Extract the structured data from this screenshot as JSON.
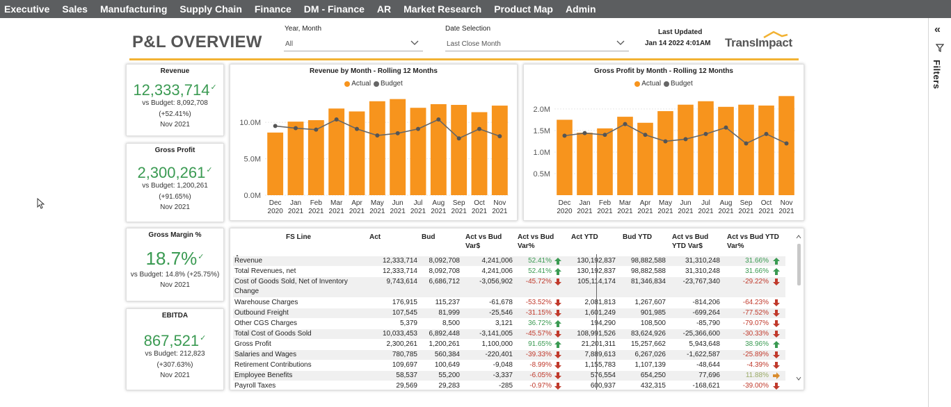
{
  "nav": {
    "items": [
      {
        "label": "Executive"
      },
      {
        "label": "Sales"
      },
      {
        "label": "Manufacturing"
      },
      {
        "label": "Supply Chain"
      },
      {
        "label": "Finance"
      },
      {
        "label": "DM - Finance"
      },
      {
        "label": "AR"
      },
      {
        "label": "Market Research"
      },
      {
        "label": "Product Map"
      },
      {
        "label": "Admin"
      }
    ]
  },
  "header": {
    "title": "P&L OVERVIEW",
    "year_month_label": "Year, Month",
    "year_month_value": "All",
    "date_selection_label": "Date Selection",
    "date_selection_value": "Last Close Month",
    "last_updated_label": "Last Updated",
    "last_updated_value": "Jan 14 2022 4:01AM",
    "logo_text": "TransImpact"
  },
  "right_pane": {
    "collapse_glyph": "«",
    "filters_label": "Filters"
  },
  "kpis": [
    {
      "title": "Revenue",
      "value": "12,333,714",
      "budget": "vs Budget: 8,092,708",
      "variance": "(+52.41%)",
      "period": "Nov 2021"
    },
    {
      "title": "Gross Profit",
      "value": "2,300,261",
      "budget": "vs Budget: 1,200,261",
      "variance": "(+91.65%)",
      "period": "Nov 2021"
    },
    {
      "title": "Gross Margin %",
      "value": "18.7%",
      "budget": "vs Budget: 14.8% (+25.75%)",
      "variance": "",
      "period": "Nov 2021"
    },
    {
      "title": "EBITDA",
      "value": "867,521",
      "budget": "vs Budget: 212,823",
      "variance": "(+307.63%)",
      "period": "Nov 2021"
    }
  ],
  "colors": {
    "actual": "#f7941d",
    "budget": "#666666",
    "positive": "#3a9a52",
    "negative": "#c0392b",
    "accent": "#f2b233"
  },
  "chart_data": [
    {
      "type": "bar",
      "title": "Revenue by Month - Rolling 12 Months",
      "legend": [
        "Actual",
        "Budget"
      ],
      "legend_position": "top-center",
      "categories": [
        [
          "Dec",
          "2020"
        ],
        [
          "Jan",
          "2021"
        ],
        [
          "Feb",
          "2021"
        ],
        [
          "Mar",
          "2021"
        ],
        [
          "Apr",
          "2021"
        ],
        [
          "May",
          "2021"
        ],
        [
          "Jun",
          "2021"
        ],
        [
          "Jul",
          "2021"
        ],
        [
          "Aug",
          "2021"
        ],
        [
          "Sep",
          "2021"
        ],
        [
          "Oct",
          "2021"
        ],
        [
          "Nov",
          "2021"
        ]
      ],
      "yticks": [
        {
          "v": 0,
          "label": "0.0M"
        },
        {
          "v": 5,
          "label": "5.0M"
        },
        {
          "v": 10,
          "label": "10.0M"
        }
      ],
      "ylim": [
        0,
        14.5
      ],
      "series": [
        {
          "name": "Actual",
          "kind": "bar",
          "values": [
            8.6,
            10.1,
            10.3,
            11.9,
            11.5,
            12.9,
            13.2,
            12.0,
            12.5,
            12.4,
            11.4,
            12.3
          ]
        },
        {
          "name": "Budget",
          "kind": "line",
          "values": [
            9.5,
            9.2,
            9.0,
            10.4,
            9.1,
            8.2,
            8.5,
            9.1,
            10.4,
            7.8,
            9.1,
            8.1
          ]
        }
      ]
    },
    {
      "type": "bar",
      "title": "Gross Profit by Month - Rolling 12 Months",
      "legend": [
        "Actual",
        "Budget"
      ],
      "legend_position": "top-center",
      "categories": [
        [
          "Dec",
          "2020"
        ],
        [
          "Jan",
          "2021"
        ],
        [
          "Feb",
          "2021"
        ],
        [
          "Mar",
          "2021"
        ],
        [
          "Apr",
          "2021"
        ],
        [
          "May",
          "2021"
        ],
        [
          "Jun",
          "2021"
        ],
        [
          "Jul",
          "2021"
        ],
        [
          "Aug",
          "2021"
        ],
        [
          "Sep",
          "2021"
        ],
        [
          "Oct",
          "2021"
        ],
        [
          "Nov",
          "2021"
        ]
      ],
      "yticks": [
        {
          "v": 0.5,
          "label": "0.5M"
        },
        {
          "v": 1.0,
          "label": "1.0M"
        },
        {
          "v": 1.5,
          "label": "1.5M"
        },
        {
          "v": 2.0,
          "label": "2.0M"
        }
      ],
      "ylim": [
        0,
        2.45
      ],
      "series": [
        {
          "name": "Actual",
          "kind": "bar",
          "values": [
            1.75,
            1.45,
            1.55,
            1.82,
            1.68,
            1.95,
            2.1,
            2.18,
            2.05,
            2.1,
            2.08,
            2.3
          ]
        },
        {
          "name": "Budget",
          "kind": "line",
          "values": [
            1.38,
            1.44,
            1.4,
            1.65,
            1.4,
            1.25,
            1.3,
            1.42,
            1.57,
            1.2,
            1.42,
            1.2
          ]
        }
      ]
    }
  ],
  "table": {
    "headers": [
      "FS Line",
      "Act",
      "Bud",
      "Act vs Bud Var$",
      "Act vs Bud Var%",
      "Act YTD",
      "Bud YTD",
      "Act vs Bud YTD Var$",
      "Act vs Bud YTD Var%"
    ],
    "rows": [
      {
        "fs": "Revenue",
        "act": "12,333,714",
        "bud": "8,092,708",
        "var": "4,241,006",
        "varp": "52.41%",
        "vdir": "up",
        "ytd": "130,192,837",
        "budytd": "98,882,588",
        "ytdvar": "31,310,248",
        "ytdp": "31.66%",
        "ydir": "up"
      },
      {
        "fs": "Total Revenues, net",
        "act": "12,333,714",
        "bud": "8,092,708",
        "var": "4,241,006",
        "varp": "52.41%",
        "vdir": "up",
        "ytd": "130,192,837",
        "budytd": "98,882,588",
        "ytdvar": "31,310,248",
        "ytdp": "31.66%",
        "ydir": "up"
      },
      {
        "fs": "Cost of Goods Sold, Net of Inventory",
        "fs2": "Change",
        "act": "9,743,614",
        "bud": "6,686,712",
        "var": "-3,056,902",
        "varp": "-45.72%",
        "vdir": "down",
        "ytd": "105,114,174",
        "budytd": "81,346,834",
        "ytdvar": "-23,767,340",
        "ytdp": "-29.22%",
        "ydir": "down"
      },
      {
        "fs": "Warehouse Charges",
        "act": "176,915",
        "bud": "115,237",
        "var": "-61,678",
        "varp": "-53.52%",
        "vdir": "down",
        "ytd": "2,081,813",
        "budytd": "1,267,607",
        "ytdvar": "-814,206",
        "ytdp": "-64.23%",
        "ydir": "down"
      },
      {
        "fs": "Outbound Freight",
        "act": "107,545",
        "bud": "81,999",
        "var": "-25,546",
        "varp": "-31.15%",
        "vdir": "down",
        "ytd": "1,601,249",
        "budytd": "901,985",
        "ytdvar": "-699,264",
        "ytdp": "-77.52%",
        "ydir": "down"
      },
      {
        "fs": "Other CGS Charges",
        "act": "5,379",
        "bud": "8,500",
        "var": "3,121",
        "varp": "36.72%",
        "vdir": "up",
        "ytd": "194,290",
        "budytd": "108,500",
        "ytdvar": "-85,790",
        "ytdp": "-79.07%",
        "ydir": "down"
      },
      {
        "fs": "Total Cost of Goods Sold",
        "act": "10,033,453",
        "bud": "6,892,448",
        "var": "-3,141,005",
        "varp": "-45.57%",
        "vdir": "down",
        "ytd": "108,991,526",
        "budytd": "83,624,926",
        "ytdvar": "-25,366,600",
        "ytdp": "-30.33%",
        "ydir": "down"
      },
      {
        "fs": "Gross Profit",
        "act": "2,300,261",
        "bud": "1,200,261",
        "var": "1,100,000",
        "varp": "91.65%",
        "vdir": "up",
        "ytd": "21,201,311",
        "budytd": "15,257,662",
        "ytdvar": "5,943,648",
        "ytdp": "38.96%",
        "ydir": "up"
      },
      {
        "fs": "Salaries and Wages",
        "act": "780,785",
        "bud": "560,384",
        "var": "-220,401",
        "varp": "-39.33%",
        "vdir": "down",
        "ytd": "7,889,613",
        "budytd": "6,267,026",
        "ytdvar": "-1,622,587",
        "ytdp": "-25.89%",
        "ydir": "down"
      },
      {
        "fs": "Retirement Contributions",
        "act": "109,697",
        "bud": "100,649",
        "var": "-9,048",
        "varp": "-8.99%",
        "vdir": "down",
        "ytd": "1,155,783",
        "budytd": "1,107,139",
        "ytdvar": "-48,644",
        "ytdp": "-4.39%",
        "ydir": "down"
      },
      {
        "fs": "Employee Benefits",
        "act": "58,537",
        "bud": "55,200",
        "var": "-3,337",
        "varp": "-6.05%",
        "vdir": "down",
        "ytd": "576,554",
        "budytd": "654,250",
        "ytdvar": "77,696",
        "ytdp": "11.88%",
        "ydir": "flat"
      },
      {
        "fs": "Payroll Taxes",
        "act": "29,569",
        "bud": "29,283",
        "var": "-285",
        "varp": "-0.97%",
        "vdir": "down",
        "ytd": "600,937",
        "budytd": "432,315",
        "ytdvar": "-168,621",
        "ytdp": "-39.00%",
        "ydir": "down"
      }
    ]
  }
}
